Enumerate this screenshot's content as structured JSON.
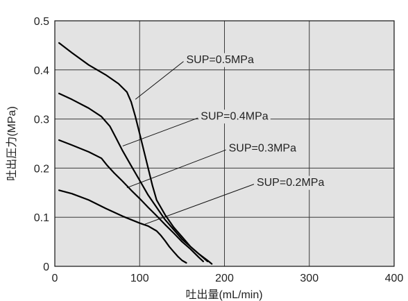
{
  "chart_data": {
    "type": "line",
    "title": "",
    "xlabel": "吐出量(mL/min)",
    "ylabel": "吐出圧力(MPa)",
    "xlim": [
      0,
      400
    ],
    "ylim": [
      0,
      0.5
    ],
    "x_ticks": [
      "0",
      "100",
      "200",
      "300",
      "400"
    ],
    "y_ticks": [
      "0",
      "0.1",
      "0.2",
      "0.3",
      "0.4",
      "0.5"
    ],
    "grid": true,
    "colors": {
      "background": "#e3e3e3",
      "grid": "#3a3a3a",
      "line": "#000000"
    },
    "series": [
      {
        "name": "SUP=0.5MPa",
        "x": [
          5,
          20,
          40,
          60,
          75,
          85,
          90,
          95,
          100,
          105,
          110,
          115,
          120,
          130,
          140,
          150,
          160,
          170,
          180,
          185
        ],
        "y": [
          0.455,
          0.435,
          0.41,
          0.39,
          0.372,
          0.355,
          0.335,
          0.305,
          0.27,
          0.235,
          0.2,
          0.165,
          0.135,
          0.105,
          0.08,
          0.06,
          0.04,
          0.025,
          0.012,
          0.005
        ]
      },
      {
        "name": "SUP=0.4MPa",
        "x": [
          5,
          20,
          40,
          55,
          65,
          72,
          80,
          90,
          100,
          110,
          120,
          130,
          140,
          150,
          160,
          170,
          180
        ],
        "y": [
          0.352,
          0.34,
          0.322,
          0.305,
          0.285,
          0.262,
          0.235,
          0.205,
          0.175,
          0.145,
          0.12,
          0.095,
          0.075,
          0.055,
          0.04,
          0.025,
          0.01
        ]
      },
      {
        "name": "SUP=0.3MPa",
        "x": [
          5,
          20,
          40,
          55,
          62,
          70,
          80,
          90,
          100,
          110,
          120,
          130,
          140,
          150,
          160,
          170,
          175
        ],
        "y": [
          0.257,
          0.247,
          0.233,
          0.22,
          0.205,
          0.19,
          0.173,
          0.155,
          0.138,
          0.12,
          0.103,
          0.085,
          0.068,
          0.05,
          0.035,
          0.018,
          0.01
        ]
      },
      {
        "name": "SUP=0.2MPa",
        "x": [
          5,
          20,
          40,
          60,
          80,
          100,
          110,
          120,
          125,
          130,
          135,
          140,
          145,
          150,
          155
        ],
        "y": [
          0.155,
          0.148,
          0.135,
          0.118,
          0.102,
          0.088,
          0.082,
          0.072,
          0.063,
          0.052,
          0.04,
          0.03,
          0.02,
          0.012,
          0.007
        ]
      }
    ],
    "annotations": [
      {
        "text": "SUP=0.5MPa",
        "series": 0,
        "x": 155,
        "y": 0.42,
        "pointer_to": [
          95,
          0.34
        ]
      },
      {
        "text": "SUP=0.4MPa",
        "series": 1,
        "x": 172,
        "y": 0.305,
        "pointer_to": [
          80,
          0.245
        ]
      },
      {
        "text": "SUP=0.3MPa",
        "series": 2,
        "x": 205,
        "y": 0.24,
        "pointer_to": [
          85,
          0.16
        ]
      },
      {
        "text": "SUP=0.2MPa",
        "series": 3,
        "x": 238,
        "y": 0.17,
        "pointer_to": [
          105,
          0.085
        ]
      }
    ]
  }
}
